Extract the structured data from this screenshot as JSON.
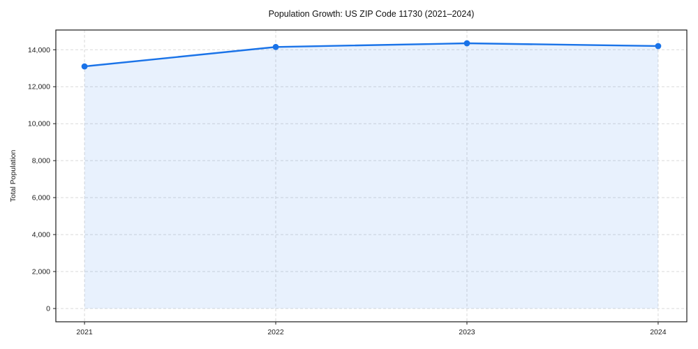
{
  "figure": {
    "background": "#ffffff"
  },
  "chart_data": {
    "type": "area",
    "title": "Population Growth: US ZIP Code 11730 (2021–2024)",
    "xlabel": "",
    "ylabel": "Total Population",
    "categories": [
      "2021",
      "2022",
      "2023",
      "2024"
    ],
    "series": [
      {
        "name": "Total Population",
        "values": [
          13100,
          14150,
          14350,
          14200
        ]
      }
    ],
    "yticks": [
      {
        "value": 0,
        "label": "0"
      },
      {
        "value": 2000,
        "label": "2,000"
      },
      {
        "value": 4000,
        "label": "4,000"
      },
      {
        "value": 6000,
        "label": "6,000"
      },
      {
        "value": 8000,
        "label": "8,000"
      },
      {
        "value": 10000,
        "label": "10,000"
      },
      {
        "value": 12000,
        "label": "12,000"
      },
      {
        "value": 14000,
        "label": "14,000"
      }
    ],
    "xlim": [
      -0.15,
      3.15
    ],
    "ylim": [
      -718,
      15068
    ],
    "grid": true,
    "grid_style": "dashed",
    "legend": "none",
    "marker": "circle",
    "colors": {
      "line": "#1a73e8",
      "marker": "#1a73e8",
      "area_fill": "#1a73e8",
      "area_fill_opacity": 0.1,
      "grid": "#d9d9d9",
      "spine": "#1c1c1c",
      "tick_text": "#1c1c1c",
      "title_text": "#111111",
      "background": "#ffffff"
    }
  }
}
